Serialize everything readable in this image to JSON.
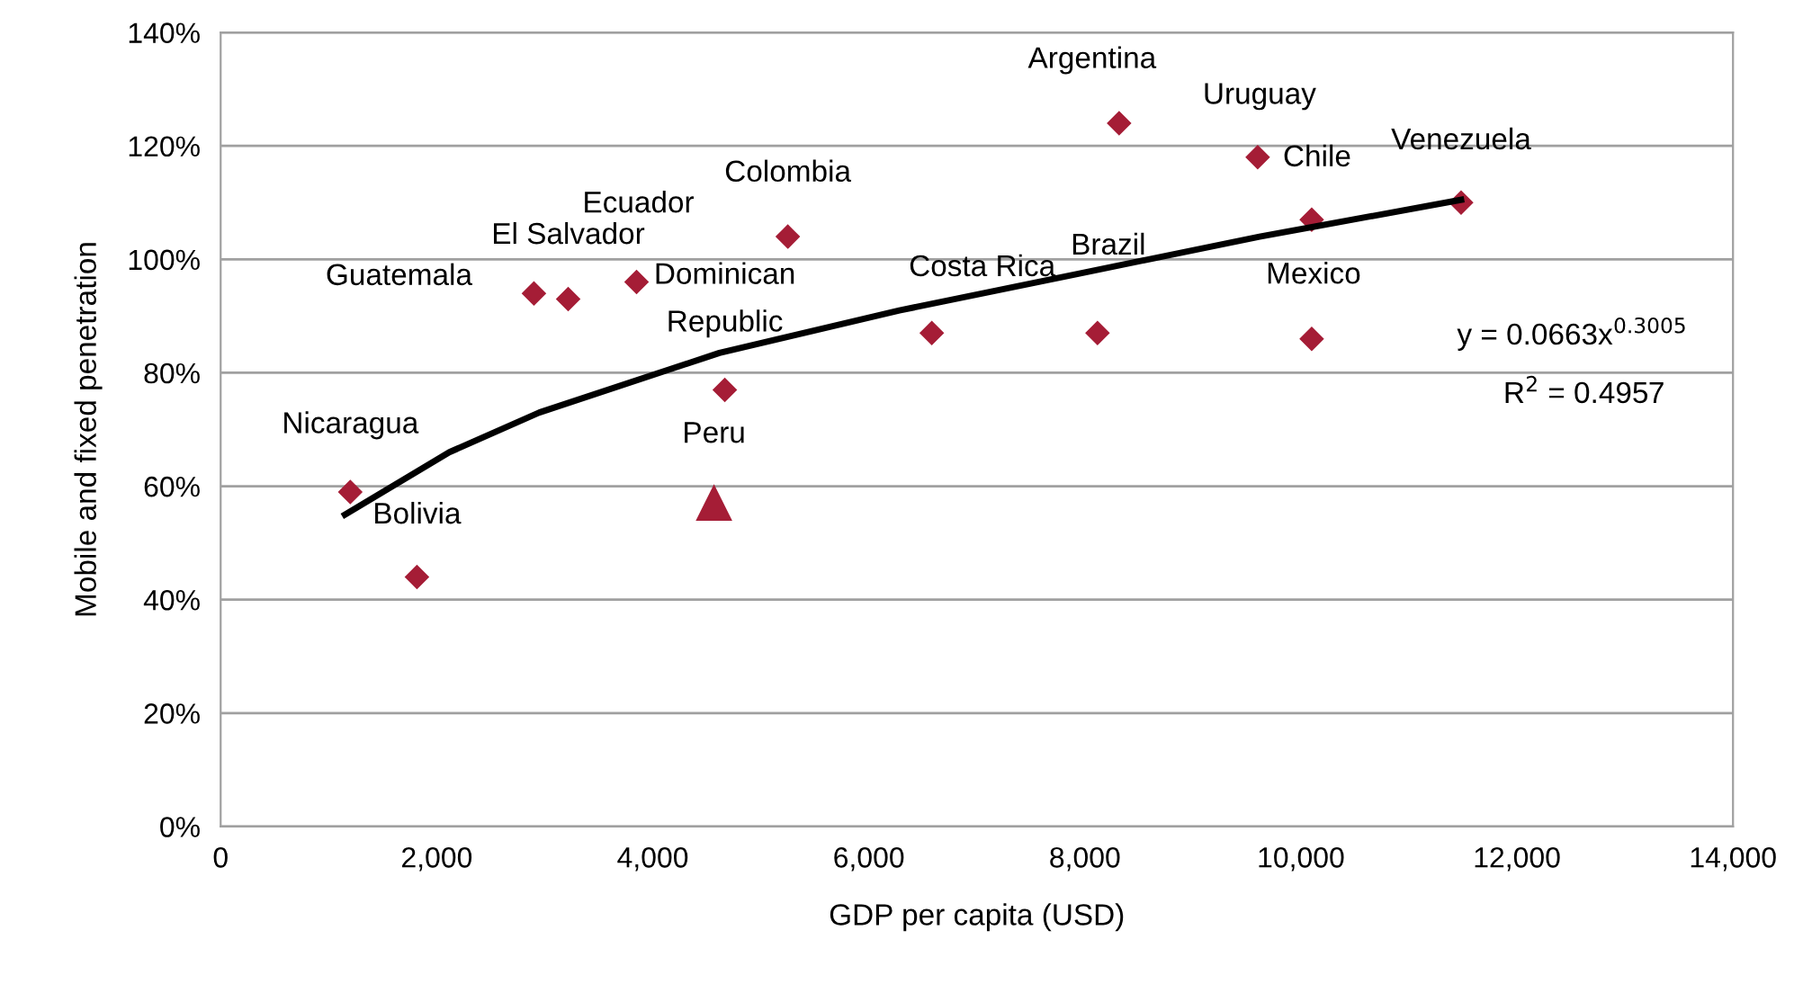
{
  "chart_data": {
    "type": "scatter",
    "xlabel": "GDP per capita (USD)",
    "ylabel": "Mobile and fixed penetration",
    "xlim": [
      0,
      14000
    ],
    "xticks": [
      {
        "value": 0,
        "label": "0"
      },
      {
        "value": 2000,
        "label": "2,000"
      },
      {
        "value": 4000,
        "label": "4,000"
      },
      {
        "value": 6000,
        "label": "6,000"
      },
      {
        "value": 8000,
        "label": "8,000"
      },
      {
        "value": 10000,
        "label": "10,000"
      },
      {
        "value": 12000,
        "label": "12,000"
      },
      {
        "value": 14000,
        "label": "14,000"
      }
    ],
    "ylim": [
      0,
      140
    ],
    "yticks": [
      {
        "value": 0,
        "label": "0%"
      },
      {
        "value": 20,
        "label": "20%"
      },
      {
        "value": 40,
        "label": "40%"
      },
      {
        "value": 60,
        "label": "60%"
      },
      {
        "value": 80,
        "label": "80%"
      },
      {
        "value": 100,
        "label": "100%"
      },
      {
        "value": 120,
        "label": "120%"
      },
      {
        "value": 140,
        "label": "140%"
      }
    ],
    "grid": "y",
    "legend": false,
    "series": [
      {
        "marker": "diamond",
        "color": "#a51d36",
        "x": [
          1200,
          1817,
          2900,
          3217,
          3850,
          4667,
          5250,
          6583,
          8117,
          8317,
          9600,
          10100,
          10100,
          11483
        ],
        "values": [
          59,
          44,
          94,
          93,
          96,
          77,
          104,
          87,
          87,
          124,
          118,
          107,
          86,
          110
        ]
      },
      {
        "marker": "triangle",
        "color": "#a51d36",
        "x": [
          4567
        ],
        "values": [
          57
        ]
      },
      {
        "type": "line",
        "marker": "none",
        "line_style": "solid",
        "color": "#000000",
        "x": [
          1150,
          2117,
          2950,
          4617,
          6283,
          7950,
          9617,
          11483
        ],
        "values": [
          55,
          66,
          73,
          83.5,
          91,
          97.5,
          104,
          110.5
        ]
      }
    ],
    "annotations": [
      {
        "text": "Argentina",
        "x": 8317,
        "y": 124
      },
      {
        "text": "Uruguay",
        "x": 9600,
        "y": 118
      },
      {
        "text": "Chile",
        "x": 10100,
        "y": 107
      },
      {
        "text": "Venezuela",
        "x": 11483,
        "y": 110
      },
      {
        "text": "Colombia",
        "x": 5250,
        "y": 104
      },
      {
        "text": "Ecuador",
        "x": 3850,
        "y": 96
      },
      {
        "text": "El Salvador",
        "x": 3217,
        "y": 93
      },
      {
        "text": "Guatemala",
        "x": 2900,
        "y": 94
      },
      {
        "text": "Dominican\nRepublic",
        "x": 4667,
        "y": 77
      },
      {
        "text": "Costa Rica",
        "x": 6583,
        "y": 87
      },
      {
        "text": "Brazil",
        "x": 8117,
        "y": 87
      },
      {
        "text": "Mexico",
        "x": 10100,
        "y": 86
      },
      {
        "text": "Peru",
        "x": 4567,
        "y": 57
      },
      {
        "text": "Nicaragua",
        "x": 1200,
        "y": 59
      },
      {
        "text": "Bolivia",
        "x": 1817,
        "y": 44
      },
      "y = 0.0663x$^{0.3005}$",
      "R$^{2}$ = 0.4957"
    ]
  }
}
